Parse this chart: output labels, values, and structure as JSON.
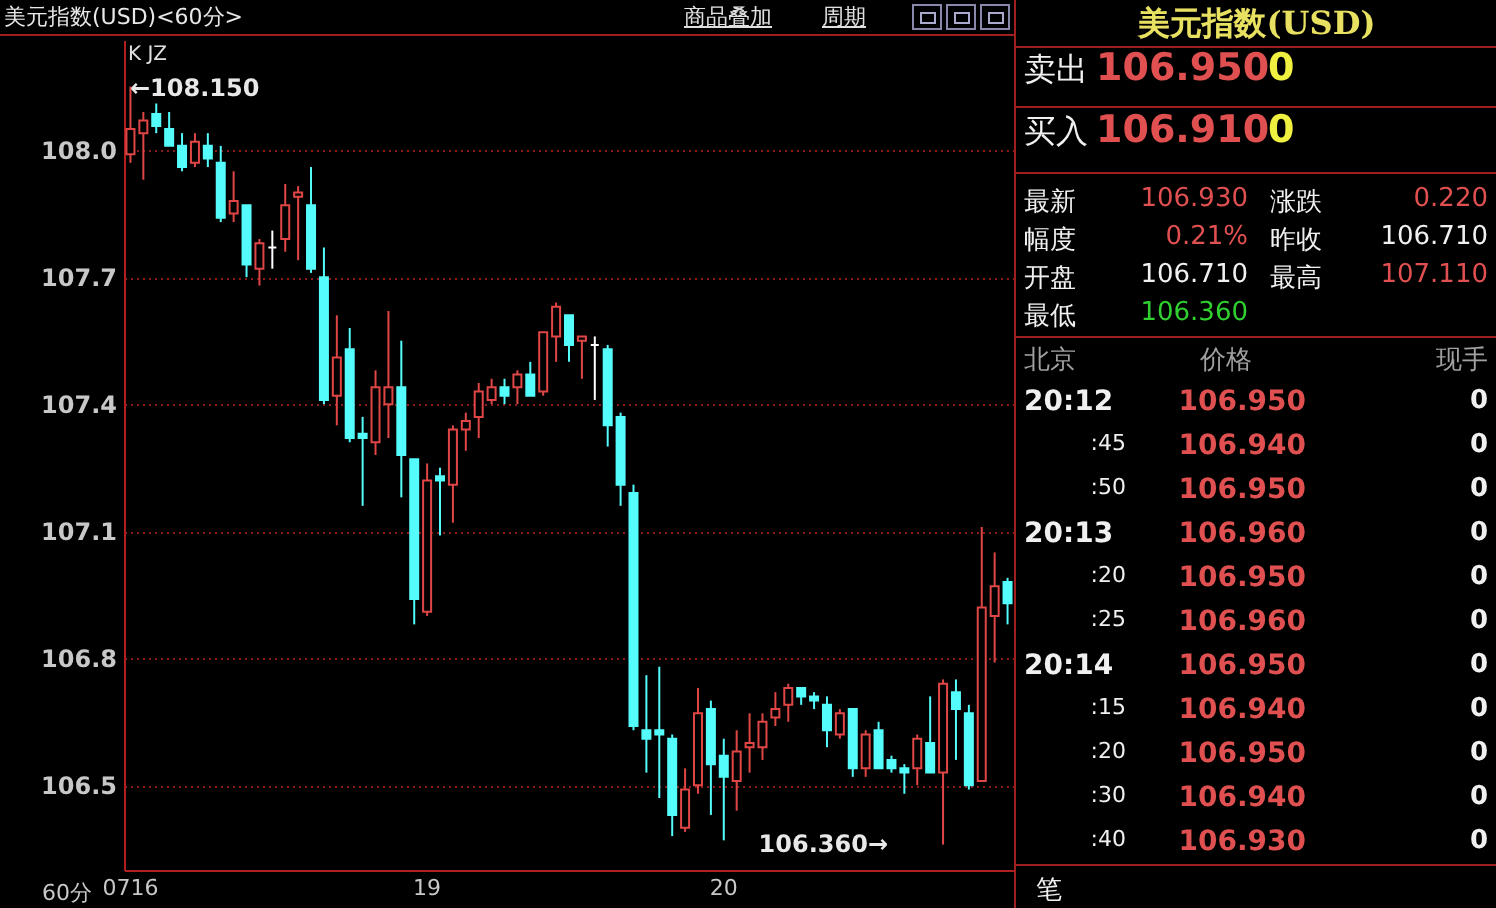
{
  "chart_data": [
    {
      "type": "candlestick",
      "title": "美元指数(USD)<60分>",
      "categories": [
        "0716",
        null,
        null,
        null,
        null,
        null,
        null,
        null,
        null,
        null,
        null,
        null,
        null,
        null,
        null,
        null,
        null,
        null,
        null,
        null,
        null,
        null,
        null,
        "19",
        null,
        null,
        null,
        null,
        null,
        null,
        null,
        null,
        null,
        null,
        null,
        null,
        null,
        null,
        null,
        null,
        null,
        null,
        null,
        null,
        null,
        null,
        "20",
        null,
        null,
        null,
        null,
        null,
        null,
        null,
        null,
        null,
        null,
        null,
        null,
        null,
        null,
        null,
        null,
        null,
        null,
        null,
        null,
        null,
        null
      ],
      "ohlc": [
        [
          107.99,
          108.15,
          107.97,
          108.05
        ],
        [
          108.04,
          108.09,
          107.93,
          108.07
        ],
        [
          108.085,
          108.11,
          108.04,
          108.057
        ],
        [
          108.05,
          108.09,
          108.01,
          108.01
        ],
        [
          108.01,
          108.04,
          107.95,
          107.96
        ],
        [
          107.97,
          108.04,
          107.96,
          108.02
        ],
        [
          108.01,
          108.04,
          107.96,
          107.98
        ],
        [
          107.97,
          108.01,
          107.83,
          107.84
        ],
        [
          107.85,
          107.95,
          107.83,
          107.88
        ],
        [
          107.87,
          107.87,
          107.7,
          107.73
        ],
        [
          107.72,
          107.79,
          107.68,
          107.78
        ],
        [
          107.77,
          107.81,
          107.72,
          107.77
        ],
        [
          107.79,
          107.92,
          107.76,
          107.87
        ],
        [
          107.89,
          107.915,
          107.74,
          107.9
        ],
        [
          107.87,
          107.96,
          107.71,
          107.72
        ],
        [
          107.7,
          107.77,
          107.4,
          107.41
        ],
        [
          107.42,
          107.61,
          107.35,
          107.51
        ],
        [
          107.53,
          107.58,
          107.31,
          107.32
        ],
        [
          107.33,
          107.37,
          107.16,
          107.32
        ],
        [
          107.31,
          107.48,
          107.28,
          107.44
        ],
        [
          107.4,
          107.62,
          107.32,
          107.44
        ],
        [
          107.44,
          107.55,
          107.18,
          107.28
        ],
        [
          107.27,
          107.27,
          106.88,
          106.94
        ],
        [
          106.91,
          107.26,
          106.9,
          107.22
        ],
        [
          107.23,
          107.25,
          107.09,
          107.22
        ],
        [
          107.21,
          107.35,
          107.12,
          107.34
        ],
        [
          107.34,
          107.38,
          107.29,
          107.36
        ],
        [
          107.37,
          107.45,
          107.32,
          107.43
        ],
        [
          107.41,
          107.46,
          107.4,
          107.44
        ],
        [
          107.44,
          107.46,
          107.4,
          107.42
        ],
        [
          107.44,
          107.48,
          107.4,
          107.47
        ],
        [
          107.47,
          107.5,
          107.42,
          107.42
        ],
        [
          107.43,
          107.57,
          107.42,
          107.57
        ],
        [
          107.56,
          107.64,
          107.5,
          107.63
        ],
        [
          107.61,
          107.61,
          107.5,
          107.54
        ],
        [
          107.55,
          107.56,
          107.46,
          107.56
        ],
        [
          107.54,
          107.56,
          107.41,
          107.54
        ],
        [
          107.53,
          107.54,
          107.3,
          107.35
        ],
        [
          107.37,
          107.38,
          107.16,
          107.21
        ],
        [
          107.19,
          107.21,
          106.63,
          106.64
        ],
        [
          106.63,
          106.76,
          106.53,
          106.61
        ],
        [
          106.63,
          106.78,
          106.47,
          106.62
        ],
        [
          106.61,
          106.62,
          106.38,
          106.43
        ],
        [
          106.4,
          106.54,
          106.39,
          106.49
        ],
        [
          106.5,
          106.73,
          106.48,
          106.67
        ],
        [
          106.68,
          106.7,
          106.43,
          106.55
        ],
        [
          106.57,
          106.61,
          106.37,
          106.52
        ],
        [
          106.51,
          106.63,
          106.44,
          106.58
        ],
        [
          106.59,
          106.67,
          106.53,
          106.6
        ],
        [
          106.59,
          106.67,
          106.56,
          106.65
        ],
        [
          106.66,
          106.72,
          106.64,
          106.68
        ],
        [
          106.69,
          106.74,
          106.65,
          106.73
        ],
        [
          106.73,
          106.73,
          106.69,
          106.71
        ],
        [
          106.71,
          106.72,
          106.68,
          106.7
        ],
        [
          106.69,
          106.71,
          106.59,
          106.63
        ],
        [
          106.62,
          106.68,
          106.61,
          106.67
        ],
        [
          106.68,
          106.68,
          106.52,
          106.54
        ],
        [
          106.54,
          106.63,
          106.52,
          106.62
        ],
        [
          106.63,
          106.65,
          106.54,
          106.54
        ],
        [
          106.56,
          106.57,
          106.53,
          106.54
        ],
        [
          106.54,
          106.55,
          106.48,
          106.53
        ],
        [
          106.54,
          106.62,
          106.5,
          106.61
        ],
        [
          106.6,
          106.71,
          106.53,
          106.53
        ],
        [
          106.53,
          106.75,
          106.36,
          106.74
        ],
        [
          106.72,
          106.75,
          106.56,
          106.68
        ],
        [
          106.67,
          106.69,
          106.49,
          106.5
        ],
        [
          106.51,
          107.11,
          106.51,
          106.92
        ],
        [
          106.9,
          107.05,
          106.79,
          106.97
        ],
        [
          106.98,
          106.99,
          106.88,
          106.93
        ]
      ],
      "colors": [
        "#e04646",
        "#e04646",
        "#54fcfc",
        "#54fcfc",
        "#54fcfc",
        "#e04646",
        "#54fcfc",
        "#54fcfc",
        "#e04646",
        "#54fcfc",
        "#e04646",
        "#ffffff",
        "#e04646",
        "#e04646",
        "#54fcfc",
        "#54fcfc",
        "#e04646",
        "#54fcfc",
        "#54fcfc",
        "#e04646",
        "#e04646",
        "#54fcfc",
        "#54fcfc",
        "#e04646",
        "#54fcfc",
        "#e04646",
        "#e04646",
        "#e04646",
        "#e04646",
        "#54fcfc",
        "#e04646",
        "#54fcfc",
        "#e04646",
        "#e04646",
        "#54fcfc",
        "#e04646",
        "#ffffff",
        "#54fcfc",
        "#54fcfc",
        "#54fcfc",
        "#54fcfc",
        "#54fcfc",
        "#54fcfc",
        "#e04646",
        "#e04646",
        "#54fcfc",
        "#54fcfc",
        "#e04646",
        "#e04646",
        "#e04646",
        "#e04646",
        "#e04646",
        "#54fcfc",
        "#54fcfc",
        "#54fcfc",
        "#e04646",
        "#54fcfc",
        "#e04646",
        "#54fcfc",
        "#54fcfc",
        "#54fcfc",
        "#e04646",
        "#54fcfc",
        "#e04646",
        "#54fcfc",
        "#54fcfc",
        "#e04646",
        "#e04646",
        "#54fcfc"
      ],
      "ylim": [
        106.3,
        108.26
      ],
      "yticks": [
        106.5,
        106.8,
        107.1,
        107.4,
        107.7,
        {
          "value": 108,
          "label": "108.0"
        }
      ],
      "grid": "y",
      "xlabel": "60分",
      "annotations": [
        "K JZ",
        "商品叠加",
        "周期",
        "←108.150",
        "106.360→"
      ]
    },
    {
      "type": "other",
      "title": "美元指数(USD)",
      "annotations": [
        "卖出",
        "106.950",
        "0",
        "买入",
        "106.910",
        "0",
        "最新",
        "106.930",
        "涨跌",
        "0.220",
        "幅度",
        "0.21%",
        "昨收",
        "106.710",
        "开盘",
        "106.710",
        "最高",
        "107.110",
        "最低",
        "106.360",
        "北京",
        "价格",
        "现手",
        "20:12",
        "106.950",
        "0",
        ":45",
        "106.940",
        "0",
        ":50",
        "106.950",
        "0",
        "20:13",
        "106.960",
        "0",
        ":20",
        "106.950",
        "0",
        ":25",
        "106.960",
        "0",
        "20:14",
        "106.950",
        "0",
        ":15",
        "106.940",
        "0",
        ":20",
        "106.950",
        "0",
        ":30",
        "106.940",
        "0",
        ":40",
        "106.930",
        "0",
        "笔"
      ]
    }
  ]
}
